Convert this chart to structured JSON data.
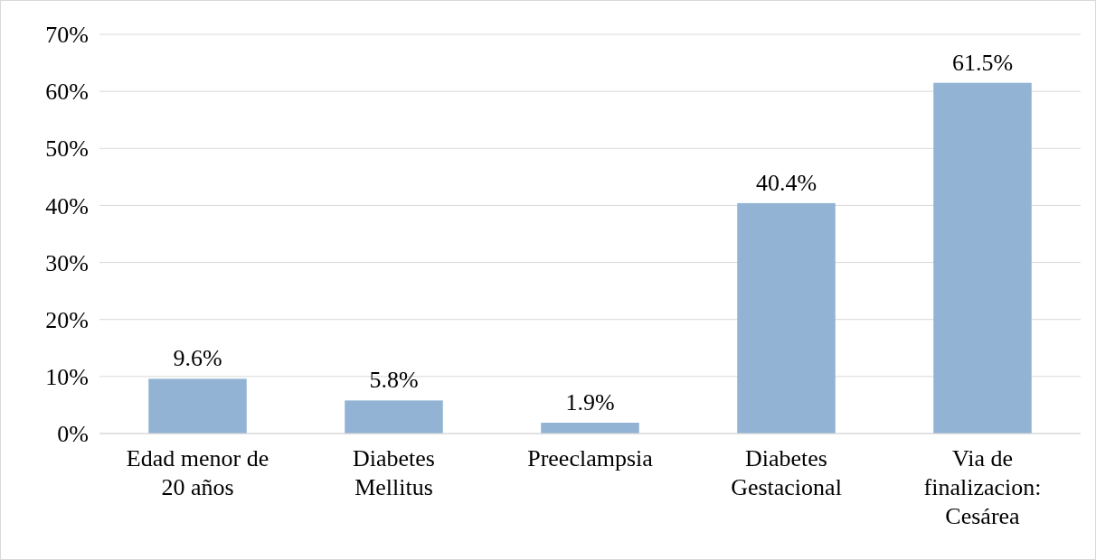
{
  "chart_data": {
    "type": "bar",
    "categories": [
      "Edad menor de 20 años",
      "Diabetes Mellitus",
      "Preeclampsia",
      "Diabetes Gestacional",
      "Via de finalizacion: Cesárea"
    ],
    "values": [
      9.6,
      5.8,
      1.9,
      40.4,
      61.5
    ],
    "value_labels": [
      "9.6%",
      "5.8%",
      "1.9%",
      "40.4%",
      "61.5%"
    ],
    "color": "#92b3d3",
    "ylim": [
      0,
      70
    ],
    "yticks": [
      {
        "value": 0,
        "label": "0%"
      },
      {
        "value": 10,
        "label": "10%"
      },
      {
        "value": 20,
        "label": "20%"
      },
      {
        "value": 30,
        "label": "30%"
      },
      {
        "value": 40,
        "label": "40%"
      },
      {
        "value": 50,
        "label": "50%"
      },
      {
        "value": 60,
        "label": "60%"
      },
      {
        "value": 70,
        "label": "70%"
      }
    ],
    "grid": "y"
  }
}
